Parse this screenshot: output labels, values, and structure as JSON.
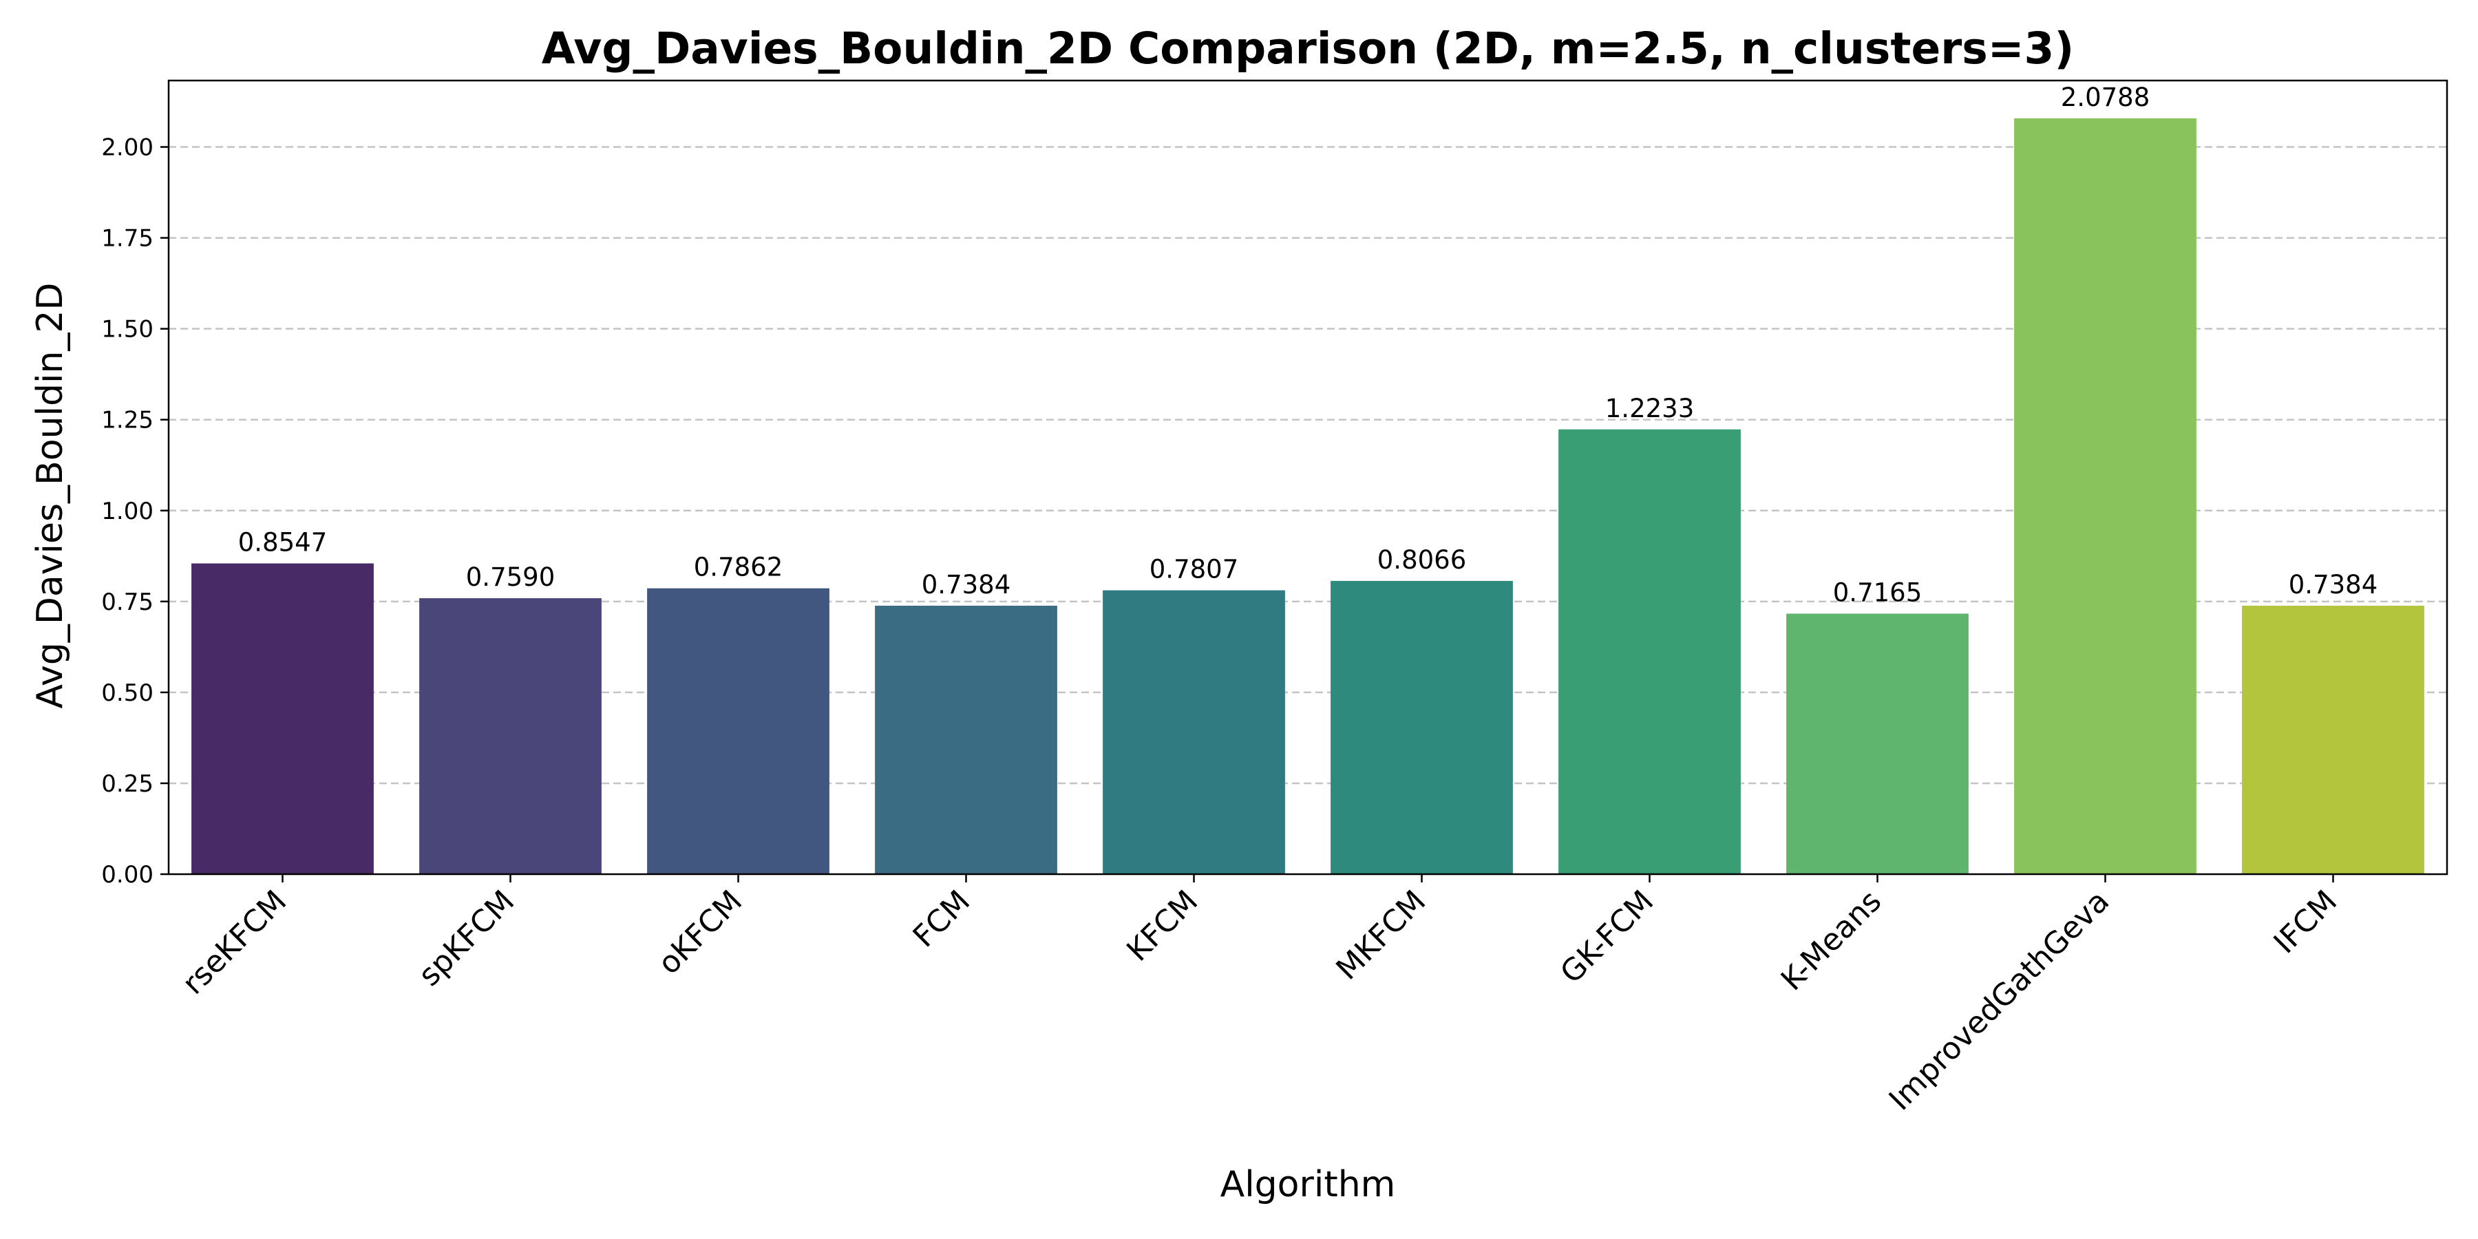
{
  "chart_data": {
    "type": "bar",
    "title": "Avg_Davies_Bouldin_2D Comparison (2D, m=2.5, n_clusters=3)",
    "xlabel": "Algorithm",
    "ylabel": "Avg_Davies_Bouldin_2D",
    "categories": [
      "rseKFCM",
      "spKFCM",
      "oKFCM",
      "FCM",
      "KFCM",
      "MKFCM",
      "GK-FCM",
      "K-Means",
      "ImprovedGathGeva",
      "IFCM"
    ],
    "values": [
      0.8547,
      0.759,
      0.7862,
      0.7384,
      0.7807,
      0.8066,
      1.2233,
      0.7165,
      2.0788,
      0.7384
    ],
    "value_labels": [
      "0.8547",
      "0.7590",
      "0.7862",
      "0.7384",
      "0.7807",
      "0.8066",
      "1.2233",
      "0.7165",
      "2.0788",
      "0.7384"
    ],
    "colors": [
      "#482a67",
      "#4a4679",
      "#42577f",
      "#3a6d83",
      "#307b81",
      "#2d8a7c",
      "#3a9e75",
      "#5fb46e",
      "#88c45b",
      "#b2c53c"
    ],
    "yticks": [
      "0.00",
      "0.25",
      "0.50",
      "0.75",
      "1.00",
      "1.25",
      "1.50",
      "1.75",
      "2.00"
    ],
    "ytick_values": [
      0,
      0.25,
      0.5,
      0.75,
      1.0,
      1.25,
      1.5,
      1.75,
      2.0
    ],
    "ylim": [
      0,
      2.1827
    ],
    "grid": "horizontal-dashed"
  }
}
